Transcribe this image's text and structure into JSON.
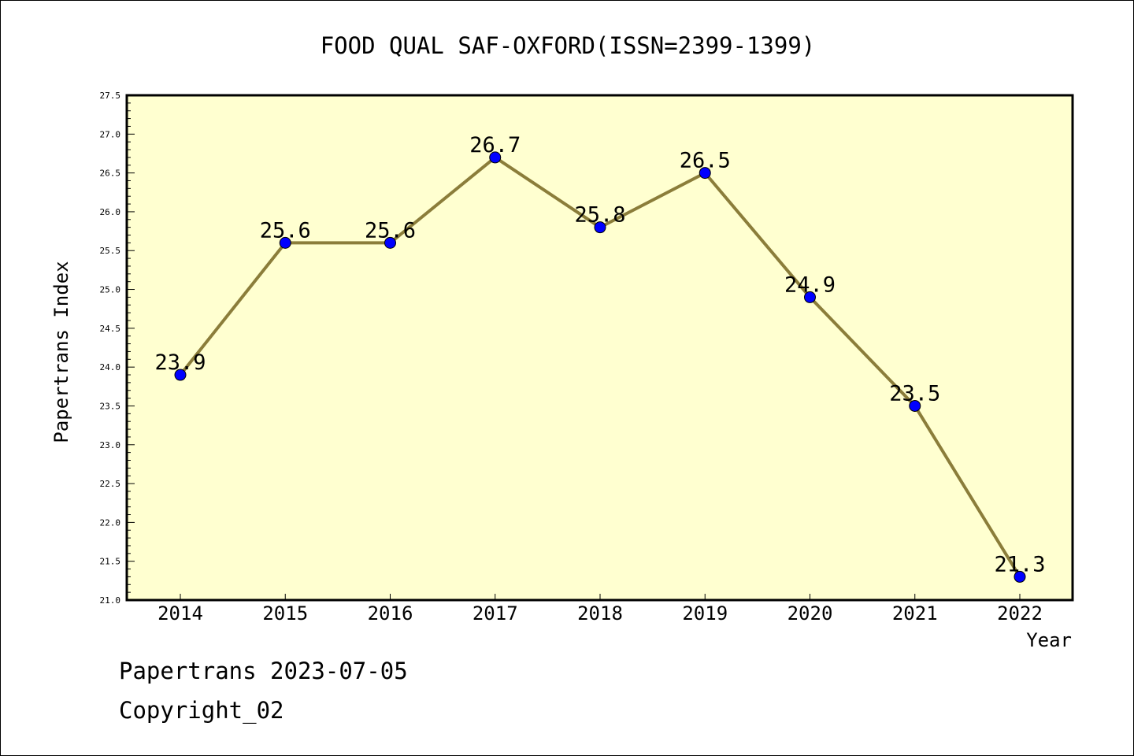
{
  "chart_data": {
    "type": "line",
    "title": "FOOD QUAL SAF-OXFORD(ISSN=2399-1399)",
    "xlabel": "Year",
    "ylabel": "Papertrans Index",
    "categories": [
      "2014",
      "2015",
      "2016",
      "2017",
      "2018",
      "2019",
      "2020",
      "2021",
      "2022"
    ],
    "series": [
      {
        "values": [
          23.9,
          25.6,
          25.6,
          26.7,
          25.8,
          26.5,
          24.9,
          23.5,
          21.3
        ]
      }
    ],
    "data_labels": [
      "23.9",
      "25.6",
      "25.6",
      "26.7",
      "25.8",
      "26.5",
      "24.9",
      "23.5",
      "21.3"
    ],
    "ylim": [
      21.0,
      27.5
    ],
    "yticks": [
      "21.0",
      "21.5",
      "22.0",
      "22.5",
      "23.0",
      "23.5",
      "24.0",
      "24.5",
      "25.0",
      "25.5",
      "26.0",
      "26.5",
      "27.0",
      "27.5"
    ],
    "grid": false,
    "colors": {
      "plot_background": "#ffffd0",
      "line": "#8b7d3a",
      "marker": "#0000ff"
    }
  },
  "footer": {
    "line1": "Papertrans 2023-07-05",
    "line2": "Copyright_02"
  }
}
